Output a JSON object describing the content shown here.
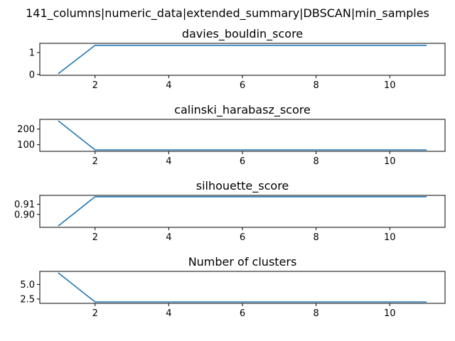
{
  "chart_data": {
    "type": "line",
    "title": "141_columns|numeric_data|extended_summary|DBSCAN|min_samples",
    "line_color": "#1f77b4",
    "subplots": [
      {
        "title": "davies_bouldin_score",
        "x": [
          1,
          2,
          3,
          4,
          5,
          6,
          7,
          8,
          9,
          10,
          11
        ],
        "y": [
          0.03,
          1.33,
          1.33,
          1.33,
          1.33,
          1.33,
          1.33,
          1.33,
          1.33,
          1.33,
          1.33
        ],
        "xlim": [
          0.5,
          11.5
        ],
        "ylim": [
          -0.04,
          1.42
        ],
        "xticks": [
          2,
          4,
          6,
          8,
          10
        ],
        "yticks": [
          0,
          1
        ]
      },
      {
        "title": "calinski_harabasz_score",
        "x": [
          1,
          2,
          3,
          4,
          5,
          6,
          7,
          8,
          9,
          10,
          11
        ],
        "y": [
          253,
          67,
          67,
          67,
          67,
          67,
          67,
          67,
          67,
          67,
          67
        ],
        "xlim": [
          0.5,
          11.5
        ],
        "ylim": [
          58,
          262
        ],
        "xticks": [
          2,
          4,
          6,
          8,
          10
        ],
        "yticks": [
          100,
          200
        ]
      },
      {
        "title": "silhouette_score",
        "x": [
          1,
          2,
          3,
          4,
          5,
          6,
          7,
          8,
          9,
          10,
          11
        ],
        "y": [
          0.8885,
          0.9175,
          0.9175,
          0.9175,
          0.9175,
          0.9175,
          0.9175,
          0.9175,
          0.9175,
          0.9175,
          0.9175
        ],
        "xlim": [
          0.5,
          11.5
        ],
        "ylim": [
          0.8872,
          0.9188
        ],
        "xticks": [
          2,
          4,
          6,
          8,
          10
        ],
        "yticks": [
          0.9,
          0.91
        ],
        "ytick_labels": [
          "0.90",
          "0.91"
        ]
      },
      {
        "title": "Number of clusters",
        "x": [
          1,
          2,
          3,
          4,
          5,
          6,
          7,
          8,
          9,
          10,
          11
        ],
        "y": [
          7,
          2,
          2,
          2,
          2,
          2,
          2,
          2,
          2,
          2,
          2
        ],
        "xlim": [
          0.5,
          11.5
        ],
        "ylim": [
          1.75,
          7.25
        ],
        "xticks": [
          2,
          4,
          6,
          8,
          10
        ],
        "yticks": [
          2.5,
          5.0
        ],
        "ytick_labels": [
          "2.5",
          "5.0"
        ]
      }
    ]
  }
}
